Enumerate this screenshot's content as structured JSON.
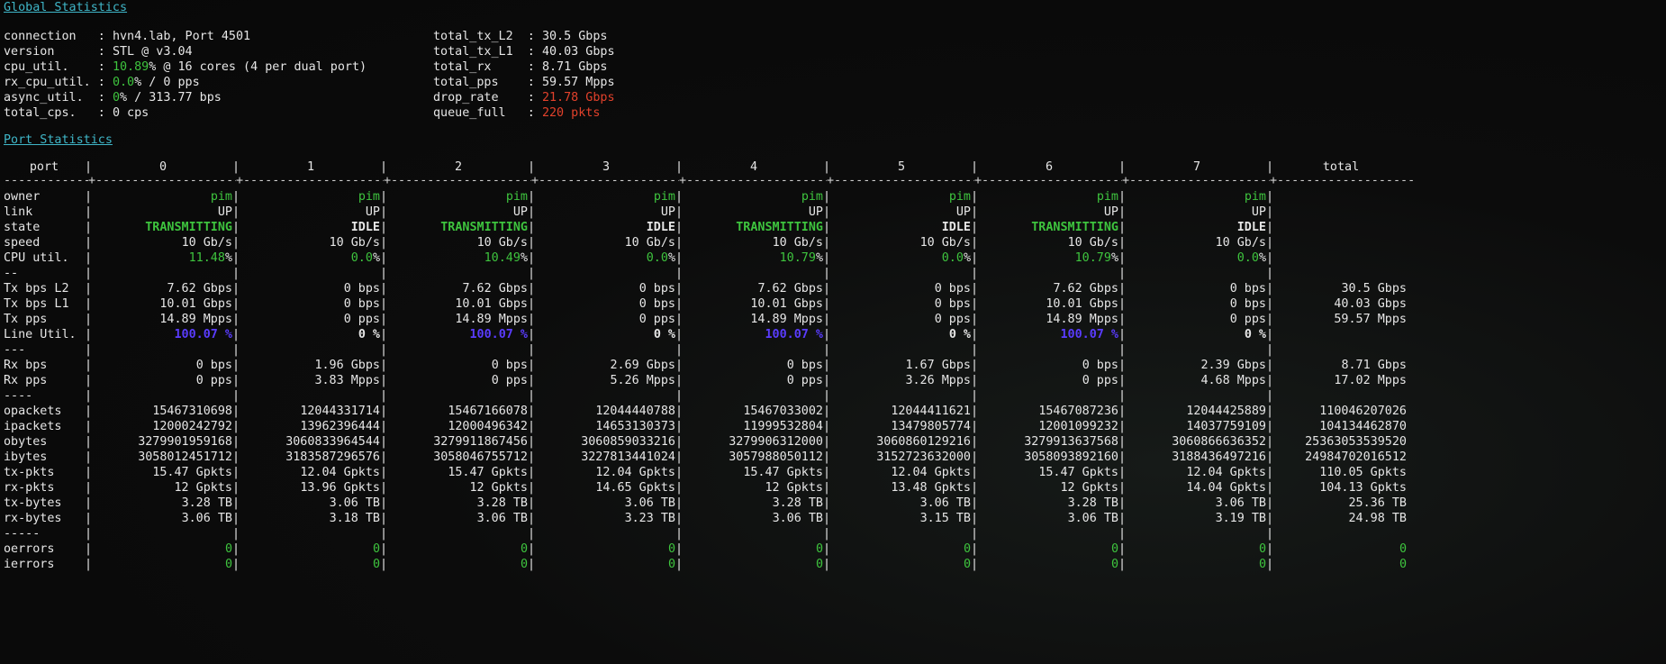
{
  "global": {
    "title": "Global Statistics",
    "left": [
      {
        "key": "connection  ",
        "sep": " : ",
        "parts": [
          {
            "t": "hvn4.lab, Port 4501",
            "c": ""
          }
        ]
      },
      {
        "key": "version     ",
        "sep": " : ",
        "parts": [
          {
            "t": "STL @ v3.04",
            "c": ""
          }
        ]
      },
      {
        "key": "cpu_util.   ",
        "sep": " : ",
        "parts": [
          {
            "t": "10.89",
            "c": "green"
          },
          {
            "t": "% @ 16 cores (4 per dual port)",
            "c": ""
          }
        ]
      },
      {
        "key": "rx_cpu_util.",
        "sep": " : ",
        "parts": [
          {
            "t": "0.0",
            "c": "green"
          },
          {
            "t": "% / 0 pps",
            "c": ""
          }
        ]
      },
      {
        "key": "async_util. ",
        "sep": " : ",
        "parts": [
          {
            "t": "0",
            "c": "green"
          },
          {
            "t": "% / 313.77 bps",
            "c": ""
          }
        ]
      },
      {
        "key": "total_cps.  ",
        "sep": " : ",
        "parts": [
          {
            "t": "0 cps",
            "c": ""
          }
        ]
      }
    ],
    "right": [
      {
        "key": "total_tx_L2 ",
        "sep": " : ",
        "parts": [
          {
            "t": "30.5 Gbps",
            "c": ""
          }
        ]
      },
      {
        "key": "total_tx_L1 ",
        "sep": " : ",
        "parts": [
          {
            "t": "40.03 Gbps",
            "c": ""
          }
        ]
      },
      {
        "key": "total_rx    ",
        "sep": " : ",
        "parts": [
          {
            "t": "8.71 Gbps",
            "c": ""
          }
        ]
      },
      {
        "key": "total_pps   ",
        "sep": " : ",
        "parts": [
          {
            "t": "59.57 Mpps",
            "c": ""
          }
        ]
      },
      {
        "key": "drop_rate   ",
        "sep": " : ",
        "parts": [
          {
            "t": "21.78 Gbps",
            "c": "red"
          }
        ]
      },
      {
        "key": "queue_full  ",
        "sep": " : ",
        "parts": [
          {
            "t": "220 pkts",
            "c": "red"
          }
        ]
      }
    ]
  },
  "ports": {
    "title": "Port Statistics",
    "header": {
      "label": "port",
      "cols": [
        "0",
        "1",
        "2",
        "3",
        "4",
        "5",
        "6",
        "7"
      ],
      "total": "total"
    },
    "rows": [
      {
        "label": "owner",
        "kind": "green",
        "cells": [
          "pim",
          "pim",
          "pim",
          "pim",
          "pim",
          "pim",
          "pim",
          "pim"
        ],
        "total": ""
      },
      {
        "label": "link",
        "kind": "",
        "cells": [
          "UP",
          "UP",
          "UP",
          "UP",
          "UP",
          "UP",
          "UP",
          "UP"
        ],
        "total": ""
      },
      {
        "label": "state",
        "kind": "state",
        "cells": [
          "TRANSMITTING",
          "IDLE",
          "TRANSMITTING",
          "IDLE",
          "TRANSMITTING",
          "IDLE",
          "TRANSMITTING",
          "IDLE"
        ],
        "total": ""
      },
      {
        "label": "speed",
        "kind": "",
        "cells": [
          "10 Gb/s",
          "10 Gb/s",
          "10 Gb/s",
          "10 Gb/s",
          "10 Gb/s",
          "10 Gb/s",
          "10 Gb/s",
          "10 Gb/s"
        ],
        "total": ""
      },
      {
        "label": "CPU util.",
        "kind": "pct",
        "suffix": "%",
        "cells": [
          "11.48",
          "0.0",
          "10.49",
          "0.0",
          "10.79",
          "0.0",
          "10.79",
          "0.0"
        ],
        "total": ""
      },
      {
        "label": "--",
        "kind": "",
        "cells": [
          "",
          "",
          "",
          "",
          "",
          "",
          "",
          ""
        ],
        "total": ""
      },
      {
        "label": "Tx bps L2",
        "kind": "",
        "cells": [
          "7.62 Gbps",
          "0 bps",
          "7.62 Gbps",
          "0 bps",
          "7.62 Gbps",
          "0 bps",
          "7.62 Gbps",
          "0 bps"
        ],
        "total": "30.5 Gbps"
      },
      {
        "label": "Tx bps L1",
        "kind": "",
        "cells": [
          "10.01 Gbps",
          "0 bps",
          "10.01 Gbps",
          "0 bps",
          "10.01 Gbps",
          "0 bps",
          "10.01 Gbps",
          "0 bps"
        ],
        "total": "40.03 Gbps"
      },
      {
        "label": "Tx pps",
        "kind": "",
        "cells": [
          "14.89 Mpps",
          "0 pps",
          "14.89 Mpps",
          "0 pps",
          "14.89 Mpps",
          "0 pps",
          "14.89 Mpps",
          "0 pps"
        ],
        "total": "59.57 Mpps"
      },
      {
        "label": "Line Util.",
        "kind": "util",
        "cells": [
          "100.07 %",
          "0 %",
          "100.07 %",
          "0 %",
          "100.07 %",
          "0 %",
          "100.07 %",
          "0 %"
        ],
        "total": ""
      },
      {
        "label": "---",
        "kind": "",
        "cells": [
          "",
          "",
          "",
          "",
          "",
          "",
          "",
          ""
        ],
        "total": ""
      },
      {
        "label": "Rx bps",
        "kind": "",
        "cells": [
          "0 bps",
          "1.96 Gbps",
          "0 bps",
          "2.69 Gbps",
          "0 bps",
          "1.67 Gbps",
          "0 bps",
          "2.39 Gbps"
        ],
        "total": "8.71 Gbps"
      },
      {
        "label": "Rx pps",
        "kind": "",
        "cells": [
          "0 pps",
          "3.83 Mpps",
          "0 pps",
          "5.26 Mpps",
          "0 pps",
          "3.26 Mpps",
          "0 pps",
          "4.68 Mpps"
        ],
        "total": "17.02 Mpps"
      },
      {
        "label": "----",
        "kind": "",
        "cells": [
          "",
          "",
          "",
          "",
          "",
          "",
          "",
          ""
        ],
        "total": ""
      },
      {
        "label": "opackets",
        "kind": "",
        "cells": [
          "15467310698",
          "12044331714",
          "15467166078",
          "12044440788",
          "15467033002",
          "12044411621",
          "15467087236",
          "12044425889"
        ],
        "total": "110046207026"
      },
      {
        "label": "ipackets",
        "kind": "",
        "cells": [
          "12000242792",
          "13962396444",
          "12000496342",
          "14653130373",
          "11999532804",
          "13479805774",
          "12001099232",
          "14037759109"
        ],
        "total": "104134462870"
      },
      {
        "label": "obytes",
        "kind": "",
        "cells": [
          "3279901959168",
          "3060833964544",
          "3279911867456",
          "3060859033216",
          "3279906312000",
          "3060860129216",
          "3279913637568",
          "3060866636352"
        ],
        "total": "25363053539520"
      },
      {
        "label": "ibytes",
        "kind": "",
        "cells": [
          "3058012451712",
          "3183587296576",
          "3058046755712",
          "3227813441024",
          "3057988050112",
          "3152723632000",
          "3058093892160",
          "3188436497216"
        ],
        "total": "24984702016512"
      },
      {
        "label": "tx-pkts",
        "kind": "",
        "cells": [
          "15.47 Gpkts",
          "12.04 Gpkts",
          "15.47 Gpkts",
          "12.04 Gpkts",
          "15.47 Gpkts",
          "12.04 Gpkts",
          "15.47 Gpkts",
          "12.04 Gpkts"
        ],
        "total": "110.05 Gpkts"
      },
      {
        "label": "rx-pkts",
        "kind": "",
        "cells": [
          "12 Gpkts",
          "13.96 Gpkts",
          "12 Gpkts",
          "14.65 Gpkts",
          "12 Gpkts",
          "13.48 Gpkts",
          "12 Gpkts",
          "14.04 Gpkts"
        ],
        "total": "104.13 Gpkts"
      },
      {
        "label": "tx-bytes",
        "kind": "",
        "cells": [
          "3.28 TB",
          "3.06 TB",
          "3.28 TB",
          "3.06 TB",
          "3.28 TB",
          "3.06 TB",
          "3.28 TB",
          "3.06 TB"
        ],
        "total": "25.36 TB"
      },
      {
        "label": "rx-bytes",
        "kind": "",
        "cells": [
          "3.06 TB",
          "3.18 TB",
          "3.06 TB",
          "3.23 TB",
          "3.06 TB",
          "3.15 TB",
          "3.06 TB",
          "3.19 TB"
        ],
        "total": "24.98 TB"
      },
      {
        "label": "-----",
        "kind": "",
        "cells": [
          "",
          "",
          "",
          "",
          "",
          "",
          "",
          ""
        ],
        "total": ""
      },
      {
        "label": "oerrors",
        "kind": "green",
        "cells": [
          "0",
          "0",
          "0",
          "0",
          "0",
          "0",
          "0",
          "0"
        ],
        "total": "0"
      },
      {
        "label": "ierrors",
        "kind": "green",
        "cells": [
          "0",
          "0",
          "0",
          "0",
          "0",
          "0",
          "0",
          "0"
        ],
        "total": "0"
      }
    ]
  },
  "colors": {
    "accent_heading": "#3fb6c8",
    "ok": "#3ec43e",
    "error": "#e2412b",
    "line_util": "#5a3cff",
    "background": "#0c0c0c"
  }
}
